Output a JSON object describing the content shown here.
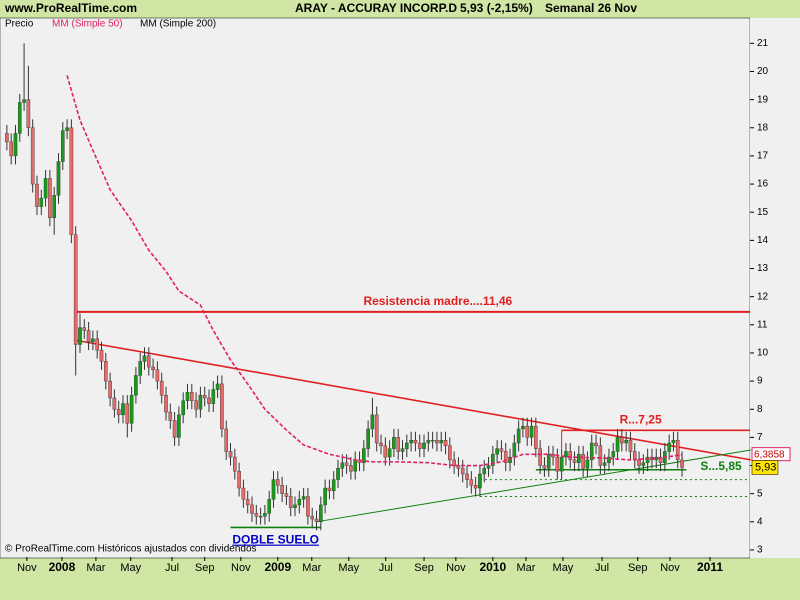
{
  "header": {
    "site": "www.ProRealTime.com",
    "title": "ARAY - ACCURAY INCORP.D",
    "quote": "5,93 (-2,15%)",
    "period": "Semanal  26 Nov"
  },
  "footer": "© ProRealTime.com  Históricos ajustados con dividendos",
  "chart_data": {
    "type": "candlestick",
    "price_name": "Precio",
    "up_color": "#1a9a1a",
    "down_color": "#e66a6a",
    "open": [
      17.8,
      17.5,
      17.0,
      17.8,
      18.9,
      19.0,
      18.0,
      16.0,
      15.2,
      15.5,
      16.2,
      14.8,
      15.6,
      16.8,
      17.9,
      18.0,
      14.2,
      10.3,
      10.9,
      10.8,
      10.4,
      10.5,
      10.1,
      9.7,
      9.0,
      8.4,
      8.0,
      7.8,
      8.2,
      7.5,
      8.5,
      9.2,
      9.7,
      9.9,
      9.5,
      9.4,
      9.0,
      8.5,
      7.9,
      7.6,
      7.0,
      7.8,
      8.3,
      8.6,
      8.3,
      8.0,
      8.5,
      8.4,
      8.2,
      8.7,
      8.9,
      7.3,
      6.5,
      6.3,
      5.8,
      5.2,
      4.8,
      4.6,
      4.3,
      4.2,
      4.2,
      4.3,
      4.8,
      5.5,
      5.3,
      5.0,
      4.9,
      4.5,
      4.6,
      4.8,
      4.9,
      4.2,
      4.1,
      4.0,
      4.6,
      5.2,
      5.1,
      5.5,
      5.9,
      6.1,
      6.0,
      5.8,
      6.2,
      6.1,
      6.6,
      7.3,
      7.8,
      6.8,
      6.7,
      6.3,
      6.6,
      7.0,
      6.5,
      6.6,
      6.8,
      6.9,
      6.8,
      6.6,
      6.8,
      6.9,
      6.9,
      6.8,
      6.9,
      6.7,
      6.2,
      6.0,
      5.9,
      5.7,
      5.5,
      5.3,
      5.2,
      5.7,
      5.9,
      6.0,
      6.4,
      6.6,
      6.5,
      6.1,
      6.3,
      6.8,
      7.3,
      7.4,
      7.0,
      7.4,
      6.6,
      6.0,
      5.9,
      6.4,
      6.3,
      5.8,
      6.3,
      6.5,
      6.2,
      6.1,
      6.4,
      5.9,
      6.2,
      6.8,
      6.7,
      6.0,
      6.1,
      6.3,
      6.5,
      7.0,
      6.8,
      6.9,
      6.5,
      6.2,
      6.0,
      6.1,
      6.3,
      6.2,
      6.3,
      6.1,
      6.5,
      6.8,
      6.9,
      6.2
    ],
    "high": [
      18.1,
      17.8,
      18.1,
      19.2,
      21.0,
      20.2,
      18.3,
      16.3,
      15.8,
      16.5,
      16.5,
      15.9,
      17.1,
      18.2,
      18.3,
      18.3,
      14.5,
      11.4,
      11.2,
      11.1,
      10.8,
      10.8,
      10.4,
      10.0,
      9.3,
      8.7,
      8.3,
      8.5,
      8.5,
      8.8,
      9.5,
      10.0,
      10.2,
      10.2,
      9.8,
      9.7,
      9.3,
      8.8,
      8.2,
      7.9,
      8.1,
      8.6,
      8.9,
      8.9,
      8.6,
      8.8,
      8.8,
      8.7,
      9.0,
      9.2,
      9.2,
      7.6,
      6.8,
      6.6,
      6.1,
      5.5,
      5.1,
      4.9,
      4.6,
      4.5,
      4.6,
      5.1,
      5.8,
      5.8,
      5.6,
      5.3,
      5.2,
      4.9,
      5.1,
      5.2,
      5.2,
      4.5,
      4.4,
      4.9,
      5.5,
      5.5,
      5.8,
      6.2,
      6.4,
      6.4,
      6.3,
      6.5,
      6.5,
      6.9,
      7.6,
      8.4,
      8.1,
      7.1,
      7.0,
      6.9,
      7.3,
      7.3,
      6.9,
      7.1,
      7.2,
      7.2,
      7.1,
      7.1,
      7.2,
      7.2,
      7.2,
      7.2,
      7.2,
      7.0,
      6.5,
      6.3,
      6.2,
      6.0,
      5.8,
      5.6,
      6.0,
      6.2,
      6.3,
      6.7,
      6.9,
      6.9,
      6.8,
      6.6,
      7.1,
      7.6,
      7.7,
      7.7,
      7.7,
      7.7,
      6.9,
      6.3,
      6.7,
      6.7,
      6.6,
      6.6,
      6.8,
      6.8,
      6.5,
      6.7,
      6.7,
      6.5,
      7.1,
      7.1,
      7.0,
      6.4,
      6.6,
      6.8,
      7.3,
      7.3,
      7.2,
      7.2,
      6.8,
      6.5,
      6.4,
      6.6,
      6.6,
      6.6,
      6.6,
      6.8,
      7.1,
      7.2,
      7.2,
      6.5
    ],
    "low": [
      17.2,
      16.7,
      16.7,
      17.5,
      18.6,
      17.7,
      15.7,
      14.9,
      14.9,
      15.2,
      14.5,
      14.2,
      15.3,
      16.5,
      17.6,
      13.9,
      9.2,
      10.0,
      10.5,
      10.1,
      10.1,
      9.8,
      9.4,
      8.7,
      8.1,
      7.7,
      7.5,
      7.5,
      7.0,
      7.2,
      8.2,
      8.9,
      9.4,
      9.2,
      9.1,
      8.7,
      8.2,
      7.6,
      7.3,
      6.7,
      6.7,
      7.5,
      8.0,
      8.0,
      7.7,
      7.7,
      8.1,
      7.9,
      7.9,
      8.4,
      7.0,
      6.2,
      6.0,
      5.5,
      4.9,
      4.5,
      4.3,
      4.0,
      3.9,
      3.9,
      3.9,
      4.0,
      4.5,
      5.0,
      4.7,
      4.6,
      4.2,
      4.2,
      4.3,
      4.5,
      3.9,
      3.8,
      3.7,
      3.7,
      4.3,
      4.8,
      4.8,
      5.2,
      5.6,
      5.7,
      5.5,
      5.5,
      5.8,
      5.8,
      6.3,
      7.0,
      6.5,
      6.4,
      6.0,
      6.0,
      6.3,
      6.2,
      6.2,
      6.3,
      6.5,
      6.5,
      6.3,
      6.3,
      6.5,
      6.6,
      6.5,
      6.5,
      6.4,
      5.9,
      5.7,
      5.6,
      5.4,
      5.2,
      5.0,
      4.9,
      4.9,
      5.4,
      5.6,
      5.7,
      6.1,
      6.2,
      5.8,
      5.8,
      6.0,
      6.5,
      7.0,
      6.7,
      6.7,
      6.3,
      5.7,
      5.6,
      5.6,
      6.0,
      5.5,
      5.5,
      6.0,
      5.9,
      5.8,
      5.8,
      5.6,
      5.6,
      5.9,
      6.4,
      5.7,
      5.7,
      5.8,
      6.0,
      6.2,
      6.5,
      6.5,
      6.2,
      5.9,
      5.7,
      5.7,
      5.8,
      5.9,
      5.9,
      5.8,
      5.8,
      6.2,
      6.5,
      5.9,
      5.6
    ],
    "close": [
      17.5,
      17.0,
      17.8,
      18.9,
      19.0,
      18.0,
      16.0,
      15.2,
      15.5,
      16.2,
      14.8,
      15.6,
      16.8,
      17.9,
      18.0,
      14.2,
      10.3,
      10.9,
      10.8,
      10.4,
      10.5,
      10.1,
      9.7,
      9.0,
      8.4,
      8.0,
      7.8,
      8.2,
      7.5,
      8.5,
      9.2,
      9.7,
      9.9,
      9.5,
      9.4,
      9.0,
      8.5,
      7.9,
      7.6,
      7.0,
      7.8,
      8.3,
      8.6,
      8.3,
      8.0,
      8.5,
      8.4,
      8.2,
      8.7,
      8.9,
      7.3,
      6.5,
      6.3,
      5.8,
      5.2,
      4.8,
      4.6,
      4.3,
      4.2,
      4.2,
      4.3,
      4.8,
      5.5,
      5.3,
      5.0,
      4.9,
      4.5,
      4.6,
      4.8,
      4.9,
      4.2,
      4.1,
      4.0,
      4.6,
      5.2,
      5.1,
      5.5,
      5.9,
      6.1,
      6.0,
      5.8,
      6.2,
      6.1,
      6.6,
      7.3,
      7.8,
      6.8,
      6.7,
      6.3,
      6.6,
      7.0,
      6.5,
      6.6,
      6.8,
      6.9,
      6.8,
      6.6,
      6.8,
      6.9,
      6.9,
      6.8,
      6.9,
      6.7,
      6.2,
      6.0,
      5.9,
      5.7,
      5.5,
      5.3,
      5.2,
      5.7,
      5.9,
      6.0,
      6.4,
      6.6,
      6.5,
      6.1,
      6.3,
      6.8,
      7.3,
      7.4,
      7.0,
      7.4,
      6.6,
      6.0,
      5.9,
      6.4,
      6.3,
      5.8,
      6.3,
      6.5,
      6.2,
      6.1,
      6.4,
      5.9,
      6.2,
      6.8,
      6.7,
      6.0,
      6.1,
      6.3,
      6.5,
      7.0,
      6.8,
      6.9,
      6.5,
      6.2,
      6.0,
      6.1,
      6.3,
      6.2,
      6.3,
      6.1,
      6.5,
      6.8,
      6.9,
      6.2,
      5.93
    ],
    "close_label": "5,93",
    "series": [
      {
        "name": "MM (Simple 50)",
        "color": "#e0206a",
        "x": [
          14,
          17,
          20,
          24,
          29,
          33,
          37,
          40,
          45,
          48,
          52,
          56,
          60,
          65,
          69,
          75,
          81,
          85,
          91,
          98,
          104,
          110,
          115,
          120,
          126,
          131,
          138,
          145,
          152,
          157
        ],
        "values": [
          19.86,
          18.27,
          17.2,
          15.8,
          14.7,
          13.65,
          12.9,
          12.2,
          11.7,
          10.8,
          9.75,
          8.9,
          8.0,
          7.26,
          6.73,
          6.4,
          6.2,
          6.13,
          6.13,
          6.1,
          6.0,
          6.0,
          6.13,
          6.4,
          6.4,
          6.3,
          6.27,
          6.2,
          6.27,
          6.3858
        ],
        "value_label": "6,3858"
      },
      {
        "name": "MM (Simple 200)",
        "color": "#000000"
      }
    ],
    "xlim": [
      -1.6,
      172.8
    ],
    "ylim": [
      2.75,
      21.9
    ],
    "xticks": [
      {
        "value": 4.65,
        "label": "Nov"
      },
      {
        "value": 12.8,
        "label": "2008"
      },
      {
        "value": 20.7,
        "label": "Mar"
      },
      {
        "value": 28.8,
        "label": "May"
      },
      {
        "value": 38.4,
        "label": "Jul"
      },
      {
        "value": 46,
        "label": "Sep"
      },
      {
        "value": 54.4,
        "label": "Nov"
      },
      {
        "value": 63,
        "label": "2009"
      },
      {
        "value": 70.9,
        "label": "Mar"
      },
      {
        "value": 79.5,
        "label": "May"
      },
      {
        "value": 88.1,
        "label": "Jul"
      },
      {
        "value": 97,
        "label": "Sep"
      },
      {
        "value": 104.4,
        "label": "Nov"
      },
      {
        "value": 113,
        "label": "2010"
      },
      {
        "value": 120.7,
        "label": "Mar"
      },
      {
        "value": 129.3,
        "label": "May"
      },
      {
        "value": 138.4,
        "label": "Jul"
      },
      {
        "value": 146.7,
        "label": "Sep"
      },
      {
        "value": 154.2,
        "label": "Nov"
      },
      {
        "value": 163.5,
        "label": "2011"
      }
    ],
    "yticks": [
      3,
      4,
      5,
      6,
      7,
      8,
      9,
      10,
      11,
      12,
      13,
      14,
      15,
      16,
      17,
      18,
      19,
      20,
      21
    ],
    "annotations": [
      {
        "type": "hline",
        "text": "Resistencia madre....11,46",
        "value": 11.46,
        "color": "#e02020",
        "x": [
          16,
          173
        ]
      },
      {
        "type": "trend",
        "color": "#e02020",
        "x": [
          16,
          173
        ],
        "values": [
          10.45,
          6.2
        ]
      },
      {
        "type": "trend",
        "color": "#108010",
        "x": [
          72,
          173
        ],
        "values": [
          4.0,
          6.55
        ]
      },
      {
        "type": "hline",
        "text": "R...7,25",
        "value": 7.25,
        "color": "#e02020",
        "x": [
          129,
          173
        ]
      },
      {
        "type": "hline",
        "text": "S...5,85",
        "value": 5.85,
        "color": "#108010",
        "x": [
          123,
          158
        ]
      },
      {
        "type": "hline",
        "text": "DOBLE SUELO",
        "value": 3.8,
        "color": "#108010",
        "x": [
          52,
          73
        ]
      },
      {
        "type": "dotted",
        "value": 5.5,
        "color": "#108010",
        "x": [
          110,
          173
        ]
      },
      {
        "type": "dotted",
        "value": 4.9,
        "color": "#108010",
        "x": [
          110,
          173
        ]
      }
    ]
  }
}
